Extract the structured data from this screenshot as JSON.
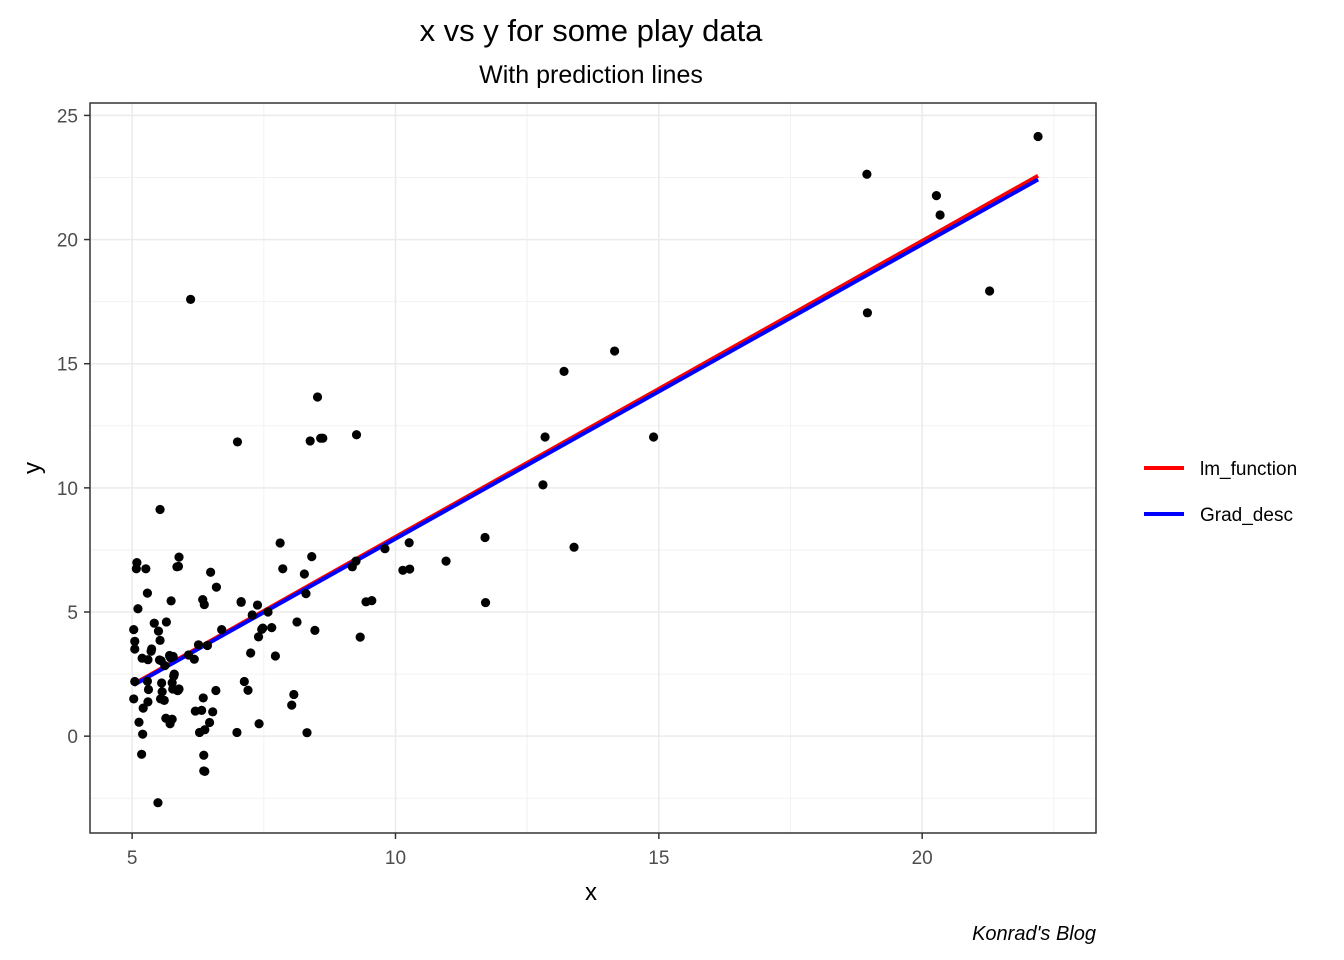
{
  "chart_data": {
    "type": "scatter",
    "title": "x vs y for some play data",
    "subtitle": "With prediction lines",
    "xlabel": "x",
    "ylabel": "y",
    "caption": "Konrad's Blog",
    "xlim": [
      4.2,
      23.3
    ],
    "ylim": [
      -3.9,
      25.5
    ],
    "xticks": [
      5,
      10,
      15,
      20
    ],
    "yticks": [
      0,
      5,
      10,
      15,
      20,
      25
    ],
    "grid": true,
    "legend_position": "right",
    "points": {
      "color": "#000000",
      "x": [
        6.11,
        5.53,
        8.52,
        7.0,
        5.85,
        8.38,
        7.48,
        8.58,
        6.49,
        5.05,
        5.71,
        14.16,
        5.73,
        8.41,
        5.64,
        5.37,
        6.37,
        5.13,
        6.43,
        7.07,
        5.19,
        5.49,
        6.32,
        9.25,
        5.11,
        6.59,
        5.87,
        6.7,
        6.99,
        5.89,
        7.58,
        6.28,
        8.27,
        9.33,
        5.08,
        12.84,
        5.2,
        13.39,
        5.29,
        5.74,
        8.03,
        5.55,
        6.35,
        5.42,
        5.21,
        5.8,
        6.26,
        6.36,
        7.81,
        6.38,
        5.72,
        10.96,
        5.03,
        5.76,
        6.38,
        5.52,
        5.36,
        7.38,
        5.53,
        5.26,
        5.57,
        5.56,
        7.65,
        6.2,
        6.53,
        5.3,
        6.47,
        5.54,
        5.05,
        8.32,
        9.55,
        5.09,
        7.72,
        7.25,
        5.18,
        5.29,
        6.07,
        7.2,
        7.41,
        5.3,
        5.76,
        9.26,
        7.86,
        9.44,
        5.03,
        8.13,
        5.05,
        7.13,
        8.07,
        5.31,
        5.89,
        5.88,
        5.78,
        5.86,
        5.61,
        5.62,
        5.77,
        5.79,
        6.18,
        6.6,
        5.5,
        5.65,
        6.36,
        7.4,
        12.8,
        13.2,
        14.9,
        18.95,
        18.96,
        20.27,
        20.34,
        21.28,
        22.2,
        10.14,
        10.26,
        10.27,
        11.7,
        11.71,
        9.8,
        8.47,
        8.3,
        8.62,
        9.18,
        7.07,
        7.46,
        7.28,
        6.34
      ],
      "y": [
        17.59,
        9.13,
        13.66,
        11.85,
        6.82,
        11.89,
        4.35,
        12.0,
        6.6,
        3.82,
        3.25,
        15.51,
        3.16,
        7.23,
        0.72,
        3.51,
        5.3,
        0.56,
        3.65,
        5.39,
        3.14,
        -2.68,
        1.04,
        7.05,
        5.13,
        1.84,
        1.84,
        4.29,
        0.15,
        1.9,
        5.0,
        0.15,
        6.53,
        3.99,
        6.74,
        12.05,
        0.08,
        7.61,
        5.76,
        5.45,
        1.25,
        3.04,
        1.54,
        4.55,
        1.13,
        2.5,
        3.68,
        -0.77,
        7.78,
        -1.42,
        0.5,
        7.05,
        4.29,
        2.15,
        0.26,
        3.07,
        3.42,
        5.28,
        3.86,
        6.74,
        1.79,
        2.14,
        4.37,
        1.01,
        0.98,
        3.08,
        0.55,
        1.5,
        3.51,
        0.14,
        5.46,
        6.99,
        3.23,
        3.35,
        -0.73,
        2.21,
        3.27,
        1.85,
        0.5,
        1.38,
        0.68,
        12.14,
        6.74,
        5.41,
        1.5,
        4.6,
        2.2,
        2.2,
        1.68,
        1.88,
        7.21,
        6.84,
        3.21,
        1.84,
        1.44,
        2.84,
        1.9,
        2.42,
        3.1,
        6.0,
        4.23,
        4.6,
        -1.4,
        4.0,
        10.12,
        14.69,
        12.05,
        22.63,
        17.05,
        21.77,
        20.99,
        17.93,
        24.15,
        6.68,
        7.79,
        6.73,
        8.0,
        5.38,
        7.55,
        4.26,
        5.74,
        12.0,
        6.82,
        5.42,
        4.3,
        4.88,
        5.5
      ]
    },
    "series": [
      {
        "name": "lm_function",
        "color": "#ff0000",
        "x": [
          5.03,
          22.2
        ],
        "y": [
          2.1,
          22.57
        ]
      },
      {
        "name": "Grad_desc",
        "color": "#0000ff",
        "x": [
          5.03,
          22.2
        ],
        "y": [
          2.06,
          22.42
        ]
      }
    ]
  }
}
